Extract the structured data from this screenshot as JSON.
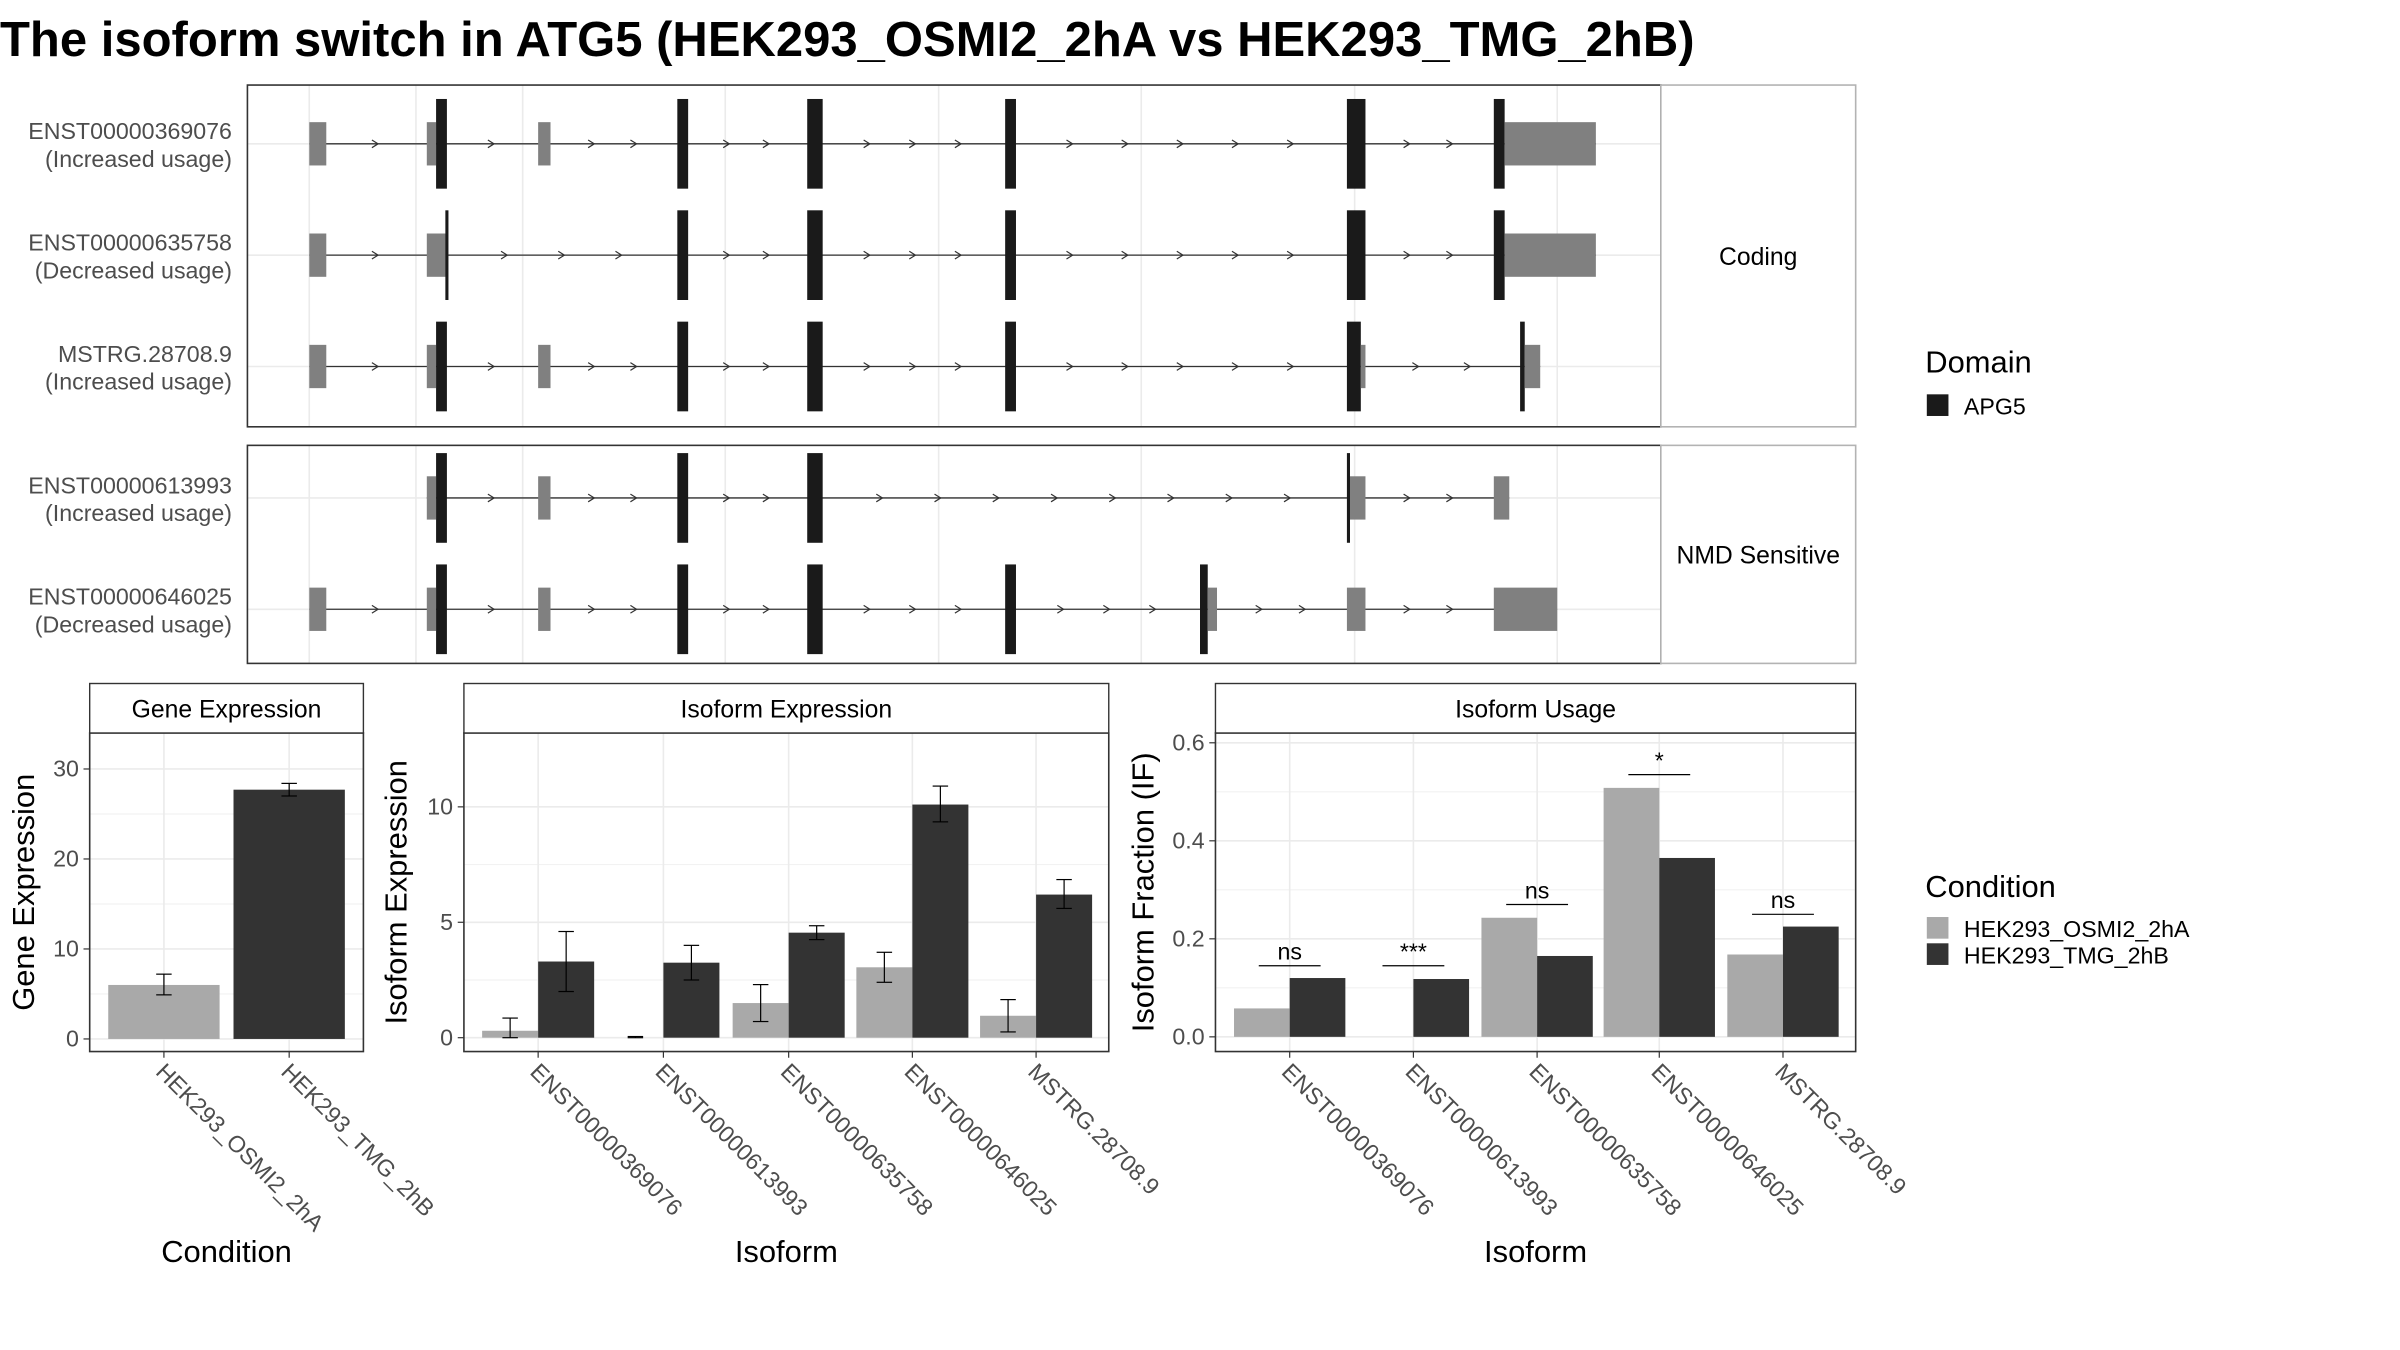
{
  "title": "The isoform switch in ATG5 (HEK293_OSMI2_2hA vs HEK293_TMG_2hB)",
  "colors": {
    "domain": "#1a1a1a",
    "utr": "#808080",
    "intron": "#333333",
    "condition_a": "#a9a9a9",
    "condition_b": "#333333",
    "strip_bg": "#ffffff",
    "grid": "#ebebeb"
  },
  "structure": {
    "groups": [
      {
        "label": "Coding",
        "transcripts": [
          {
            "id": "ENST00000369076",
            "usage": "(Increased usage)",
            "segments": [
              [
                200,
                211,
                "u"
              ],
              [
                276,
                282,
                "u"
              ],
              [
                282,
                289,
                "d"
              ],
              [
                348,
                356,
                "u"
              ],
              [
                438,
                445,
                "d"
              ],
              [
                522,
                532,
                "d"
              ],
              [
                650,
                657,
                "d"
              ],
              [
                871,
                883,
                "d"
              ],
              [
                966,
                973,
                "d"
              ],
              [
                973,
                1032,
                "u"
              ]
            ]
          },
          {
            "id": "ENST00000635758",
            "usage": "(Decreased usage)",
            "segments": [
              [
                200,
                211,
                "u"
              ],
              [
                276,
                289,
                "u"
              ],
              [
                288,
                290,
                "d"
              ],
              [
                438,
                445,
                "d"
              ],
              [
                522,
                532,
                "d"
              ],
              [
                650,
                657,
                "d"
              ],
              [
                871,
                883,
                "d"
              ],
              [
                966,
                973,
                "d"
              ],
              [
                973,
                1032,
                "u"
              ]
            ]
          },
          {
            "id": "MSTRG.28708.9",
            "usage": "(Increased usage)",
            "segments": [
              [
                200,
                211,
                "u"
              ],
              [
                276,
                282,
                "u"
              ],
              [
                282,
                289,
                "d"
              ],
              [
                348,
                356,
                "u"
              ],
              [
                438,
                445,
                "d"
              ],
              [
                522,
                532,
                "d"
              ],
              [
                650,
                657,
                "d"
              ],
              [
                871,
                880,
                "d"
              ],
              [
                880,
                883,
                "u"
              ],
              [
                983,
                986,
                "d"
              ],
              [
                986,
                996,
                "u"
              ]
            ]
          }
        ]
      },
      {
        "label": "NMD Sensitive",
        "transcripts": [
          {
            "id": "ENST00000613993",
            "usage": "(Increased usage)",
            "segments": [
              [
                276,
                282,
                "u"
              ],
              [
                282,
                289,
                "d"
              ],
              [
                348,
                356,
                "u"
              ],
              [
                438,
                445,
                "d"
              ],
              [
                522,
                532,
                "d"
              ],
              [
                871,
                873,
                "d"
              ],
              [
                873,
                883,
                "u"
              ],
              [
                966,
                976,
                "u"
              ]
            ]
          },
          {
            "id": "ENST00000646025",
            "usage": "(Decreased usage)",
            "segments": [
              [
                200,
                211,
                "u"
              ],
              [
                276,
                282,
                "u"
              ],
              [
                282,
                289,
                "d"
              ],
              [
                348,
                356,
                "u"
              ],
              [
                438,
                445,
                "d"
              ],
              [
                522,
                532,
                "d"
              ],
              [
                650,
                657,
                "d"
              ],
              [
                776,
                781,
                "d"
              ],
              [
                781,
                787,
                "u"
              ],
              [
                871,
                883,
                "u"
              ],
              [
                966,
                1007,
                "u"
              ]
            ]
          }
        ]
      }
    ],
    "legend": {
      "title": "Domain",
      "items": [
        {
          "label": "APG5",
          "color": "#1a1a1a"
        }
      ]
    }
  },
  "chart_data": [
    {
      "type": "bar",
      "title": "Gene Expression",
      "xlabel": "Condition",
      "ylabel": "Gene Expression",
      "ylim": [
        -1.4,
        34
      ],
      "yticks": [
        0,
        10,
        20,
        30
      ],
      "categories": [
        "HEK293_OSMI2_2hA",
        "HEK293_TMG_2hB"
      ],
      "series": [
        {
          "name": "HEK293_OSMI2_2hA",
          "values": [
            6.0,
            null
          ],
          "err_low": [
            4.9,
            null
          ],
          "err_high": [
            7.2,
            null
          ]
        },
        {
          "name": "HEK293_TMG_2hB",
          "values": [
            null,
            27.7
          ],
          "err_low": [
            null,
            27.0
          ],
          "err_high": [
            null,
            28.4
          ]
        }
      ]
    },
    {
      "type": "bar",
      "title": "Isoform Expression",
      "xlabel": "Isoform",
      "ylabel": "Isoform Expression",
      "ylim": [
        -0.6,
        13.2
      ],
      "yticks": [
        0,
        5,
        10
      ],
      "categories": [
        "ENST00000369076",
        "ENST00000613993",
        "ENST00000635758",
        "ENST00000646025",
        "MSTRG.28708.9"
      ],
      "series": [
        {
          "name": "HEK293_OSMI2_2hA",
          "values": [
            0.3,
            0.0,
            1.5,
            3.05,
            0.95
          ],
          "err_low": [
            0.0,
            0.0,
            0.7,
            2.4,
            0.25
          ],
          "err_high": [
            0.85,
            0.05,
            2.3,
            3.7,
            1.65
          ]
        },
        {
          "name": "HEK293_TMG_2hB",
          "values": [
            3.3,
            3.25,
            4.55,
            10.1,
            6.2
          ],
          "err_low": [
            2.0,
            2.5,
            4.25,
            9.35,
            5.6
          ],
          "err_high": [
            4.6,
            4.0,
            4.85,
            10.9,
            6.85
          ]
        }
      ]
    },
    {
      "type": "bar",
      "title": "Isoform Usage",
      "xlabel": "Isoform",
      "ylabel": "Isoform Fraction (IF)",
      "ylim": [
        -0.03,
        0.62
      ],
      "yticks": [
        0.0,
        0.2,
        0.4,
        0.6
      ],
      "categories": [
        "ENST00000369076",
        "ENST00000613993",
        "ENST00000635758",
        "ENST00000646025",
        "MSTRG.28708.9"
      ],
      "series": [
        {
          "name": "HEK293_OSMI2_2hA",
          "values": [
            0.058,
            0.0,
            0.243,
            0.508,
            0.168
          ]
        },
        {
          "name": "HEK293_TMG_2hB",
          "values": [
            0.12,
            0.118,
            0.165,
            0.365,
            0.225
          ]
        }
      ],
      "significance": [
        {
          "label": "ns",
          "y": 0.145
        },
        {
          "label": "***",
          "y": 0.145
        },
        {
          "label": "ns",
          "y": 0.27
        },
        {
          "label": "*",
          "y": 0.535
        },
        {
          "label": "ns",
          "y": 0.25
        }
      ]
    }
  ],
  "condition_legend": {
    "title": "Condition",
    "items": [
      {
        "label": "HEK293_OSMI2_2hA",
        "color": "#a9a9a9"
      },
      {
        "label": "HEK293_TMG_2hB",
        "color": "#333333"
      }
    ]
  }
}
